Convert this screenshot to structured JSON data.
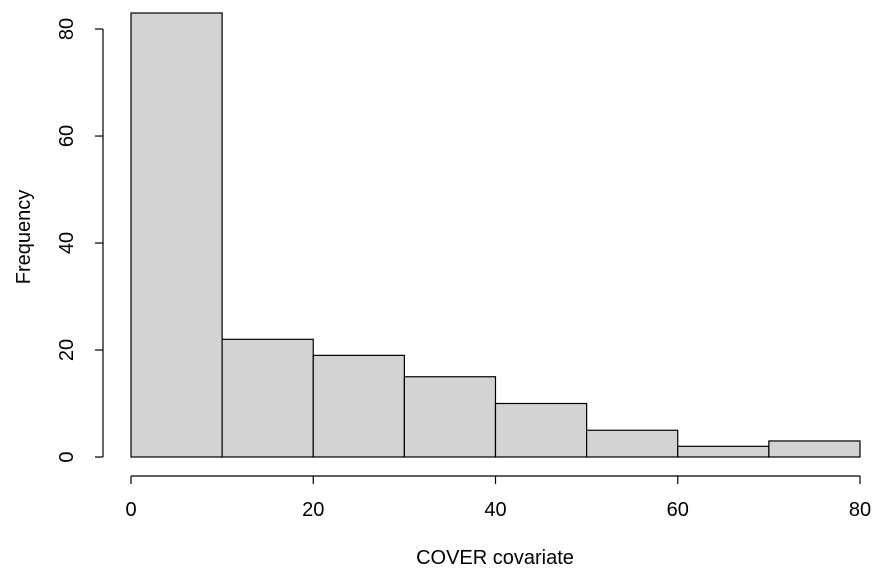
{
  "chart_data": {
    "type": "bar",
    "xlabel": "COVER covariate",
    "ylabel": "Frequency",
    "bins": [
      {
        "start": 0,
        "end": 10,
        "count": 83
      },
      {
        "start": 10,
        "end": 20,
        "count": 22
      },
      {
        "start": 20,
        "end": 30,
        "count": 19
      },
      {
        "start": 30,
        "end": 40,
        "count": 15
      },
      {
        "start": 40,
        "end": 50,
        "count": 10
      },
      {
        "start": 50,
        "end": 60,
        "count": 5
      },
      {
        "start": 60,
        "end": 70,
        "count": 2
      },
      {
        "start": 70,
        "end": 80,
        "count": 3
      }
    ],
    "xlim": [
      0,
      80
    ],
    "ylim": [
      0,
      83
    ],
    "xticks": [
      "0",
      "20",
      "40",
      "60",
      "80"
    ],
    "yticks": [
      "0",
      "20",
      "40",
      "60",
      "80"
    ],
    "bar_color": "#d3d3d3",
    "grid": false
  }
}
